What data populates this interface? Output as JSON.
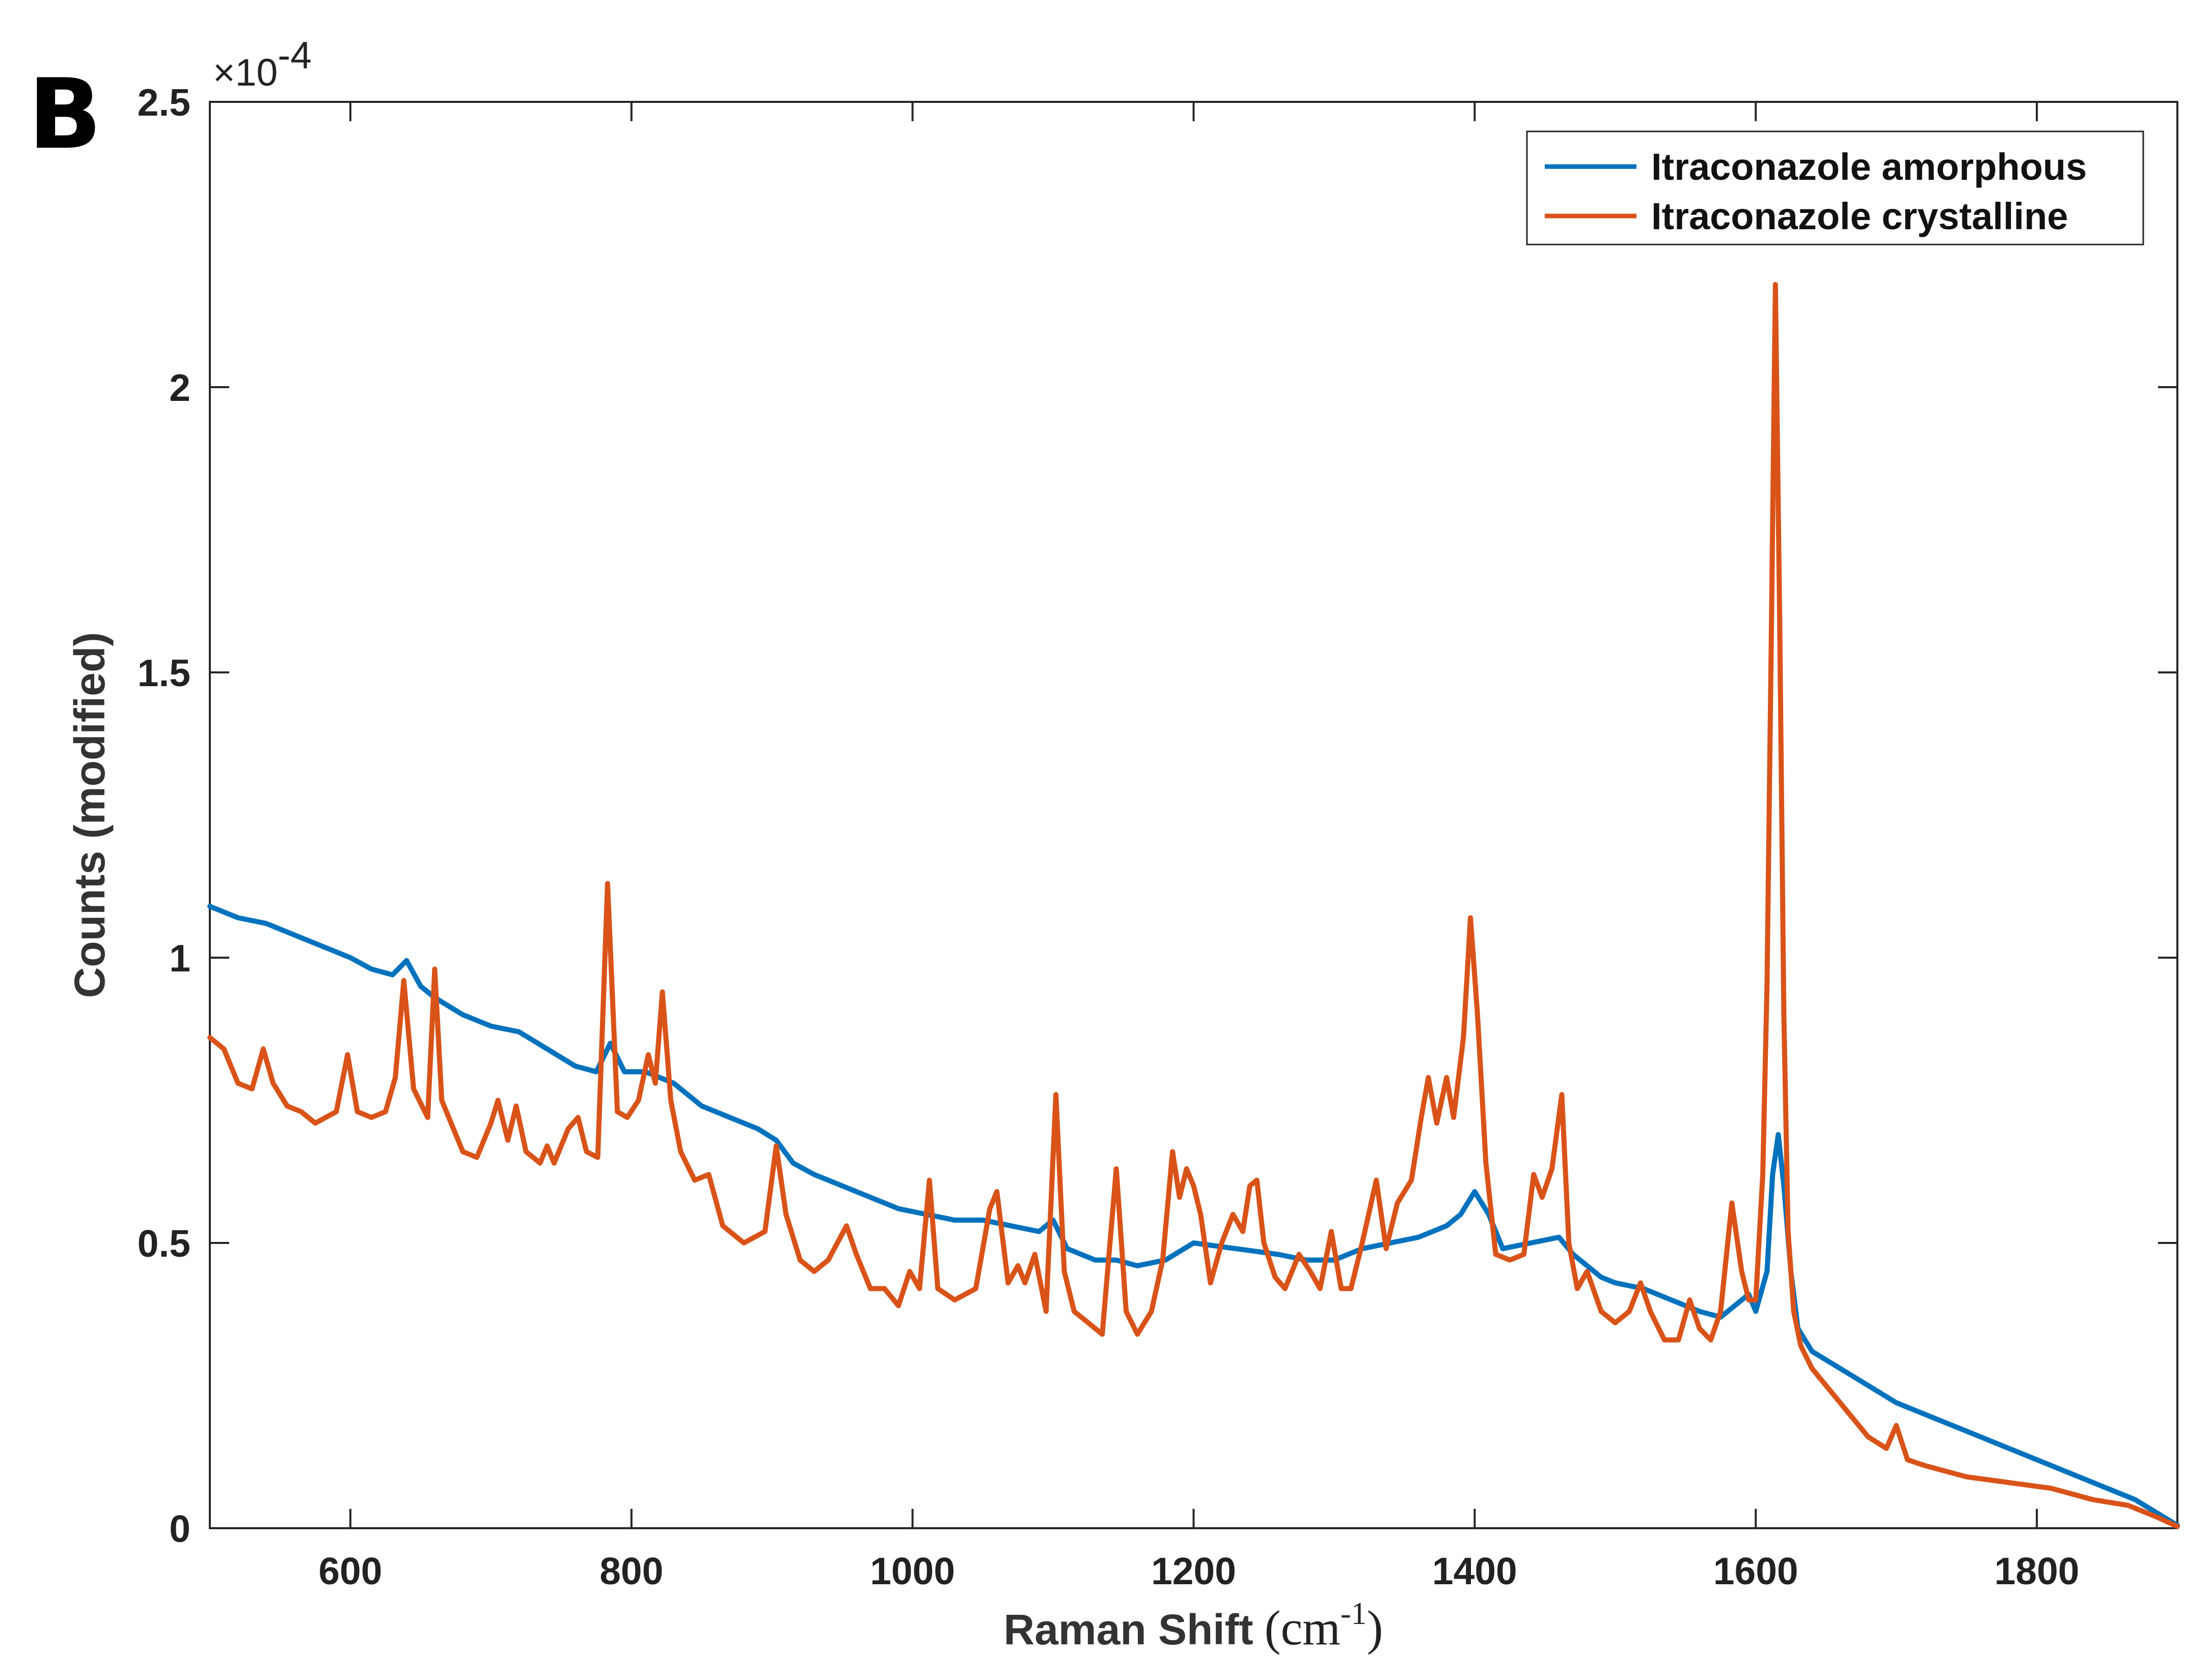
{
  "panel_label": "B",
  "chart_data": {
    "type": "line",
    "title": "",
    "xlabel": "Raman Shift",
    "xlabel_unit_base": "(cm",
    "xlabel_unit_sup": "-1",
    "xlabel_unit_close": ")",
    "ylabel": "Counts (modified)",
    "y_multiplier_base": "×10",
    "y_multiplier_exp": "-4",
    "xlim": [
      500,
      1900
    ],
    "ylim": [
      0,
      2.5
    ],
    "x_ticks": [
      600,
      800,
      1000,
      1200,
      1400,
      1600,
      1800
    ],
    "x_tick_labels": [
      "600",
      "800",
      "1000",
      "1200",
      "1400",
      "1600",
      "1800"
    ],
    "y_ticks": [
      0,
      0.5,
      1,
      1.5,
      2,
      2.5
    ],
    "y_tick_labels": [
      "0",
      "0.5",
      "1",
      "1.5",
      "2",
      "2.5"
    ],
    "grid": false,
    "legend_position": "top-right",
    "series": [
      {
        "name": "Itraconazole amorphous",
        "color": "#0072BD",
        "x": [
          500,
          520,
          540,
          560,
          580,
          600,
          615,
          630,
          640,
          650,
          660,
          680,
          700,
          720,
          740,
          760,
          775,
          785,
          795,
          810,
          830,
          850,
          870,
          890,
          903,
          915,
          930,
          950,
          970,
          990,
          1010,
          1030,
          1050,
          1070,
          1090,
          1100,
          1110,
          1130,
          1145,
          1160,
          1180,
          1200,
          1230,
          1260,
          1280,
          1300,
          1320,
          1340,
          1360,
          1380,
          1390,
          1400,
          1410,
          1420,
          1440,
          1460,
          1470,
          1480,
          1490,
          1500,
          1520,
          1540,
          1560,
          1575,
          1585,
          1595,
          1600,
          1608,
          1612,
          1616,
          1620,
          1625,
          1630,
          1640,
          1660,
          1680,
          1700,
          1730,
          1760,
          1790,
          1820,
          1850,
          1870,
          1890,
          1900
        ],
        "y": [
          1.09,
          1.07,
          1.06,
          1.04,
          1.02,
          1.0,
          0.98,
          0.97,
          0.995,
          0.95,
          0.93,
          0.9,
          0.88,
          0.87,
          0.84,
          0.81,
          0.8,
          0.85,
          0.8,
          0.8,
          0.78,
          0.74,
          0.72,
          0.7,
          0.68,
          0.64,
          0.62,
          0.6,
          0.58,
          0.56,
          0.55,
          0.54,
          0.54,
          0.53,
          0.52,
          0.54,
          0.49,
          0.47,
          0.47,
          0.46,
          0.47,
          0.5,
          0.49,
          0.48,
          0.47,
          0.47,
          0.49,
          0.5,
          0.51,
          0.53,
          0.55,
          0.59,
          0.55,
          0.49,
          0.5,
          0.51,
          0.48,
          0.46,
          0.44,
          0.43,
          0.42,
          0.4,
          0.38,
          0.37,
          0.39,
          0.41,
          0.38,
          0.45,
          0.62,
          0.69,
          0.6,
          0.45,
          0.35,
          0.31,
          0.28,
          0.25,
          0.22,
          0.19,
          0.16,
          0.13,
          0.1,
          0.07,
          0.05,
          0.02,
          0.005
        ]
      },
      {
        "name": "Itraconazole crystalline",
        "color": "#D95319",
        "x": [
          500,
          510,
          520,
          530,
          538,
          545,
          555,
          565,
          575,
          590,
          598,
          605,
          615,
          625,
          632,
          638,
          645,
          655,
          660,
          665,
          670,
          680,
          690,
          700,
          705,
          712,
          718,
          725,
          735,
          740,
          745,
          755,
          762,
          768,
          776,
          783,
          790,
          797,
          805,
          812,
          817,
          822,
          828,
          835,
          845,
          855,
          865,
          880,
          895,
          903,
          910,
          920,
          930,
          940,
          953,
          960,
          970,
          980,
          990,
          998,
          1005,
          1012,
          1018,
          1030,
          1045,
          1055,
          1060,
          1068,
          1075,
          1080,
          1087,
          1095,
          1102,
          1108,
          1115,
          1125,
          1135,
          1145,
          1152,
          1160,
          1170,
          1178,
          1185,
          1190,
          1195,
          1200,
          1205,
          1212,
          1220,
          1228,
          1235,
          1240,
          1245,
          1250,
          1258,
          1265,
          1275,
          1283,
          1290,
          1298,
          1305,
          1312,
          1320,
          1330,
          1337,
          1345,
          1355,
          1362,
          1367,
          1373,
          1380,
          1385,
          1392,
          1397,
          1402,
          1408,
          1415,
          1425,
          1435,
          1442,
          1448,
          1455,
          1462,
          1467,
          1473,
          1480,
          1490,
          1500,
          1510,
          1518,
          1525,
          1535,
          1545,
          1553,
          1560,
          1568,
          1575,
          1583,
          1590,
          1595,
          1600,
          1605,
          1608,
          1611,
          1614,
          1617,
          1620,
          1623,
          1627,
          1632,
          1640,
          1660,
          1680,
          1693,
          1700,
          1708,
          1720,
          1750,
          1780,
          1810,
          1840,
          1865,
          1885,
          1900
        ],
        "y": [
          0.86,
          0.84,
          0.78,
          0.77,
          0.84,
          0.78,
          0.74,
          0.73,
          0.71,
          0.73,
          0.83,
          0.73,
          0.72,
          0.73,
          0.79,
          0.96,
          0.77,
          0.72,
          0.98,
          0.75,
          0.72,
          0.66,
          0.65,
          0.71,
          0.75,
          0.68,
          0.74,
          0.66,
          0.64,
          0.67,
          0.64,
          0.7,
          0.72,
          0.66,
          0.65,
          1.13,
          0.73,
          0.72,
          0.75,
          0.83,
          0.78,
          0.94,
          0.75,
          0.66,
          0.61,
          0.62,
          0.53,
          0.5,
          0.52,
          0.67,
          0.55,
          0.47,
          0.45,
          0.47,
          0.53,
          0.48,
          0.42,
          0.42,
          0.39,
          0.45,
          0.42,
          0.61,
          0.42,
          0.4,
          0.42,
          0.56,
          0.59,
          0.43,
          0.46,
          0.43,
          0.48,
          0.38,
          0.76,
          0.45,
          0.38,
          0.36,
          0.34,
          0.63,
          0.38,
          0.34,
          0.38,
          0.47,
          0.66,
          0.58,
          0.63,
          0.6,
          0.55,
          0.43,
          0.5,
          0.55,
          0.52,
          0.6,
          0.61,
          0.5,
          0.44,
          0.42,
          0.48,
          0.45,
          0.42,
          0.52,
          0.42,
          0.42,
          0.5,
          0.61,
          0.49,
          0.57,
          0.61,
          0.72,
          0.79,
          0.71,
          0.79,
          0.72,
          0.86,
          1.07,
          0.9,
          0.64,
          0.48,
          0.47,
          0.48,
          0.62,
          0.58,
          0.63,
          0.76,
          0.5,
          0.42,
          0.45,
          0.38,
          0.36,
          0.38,
          0.43,
          0.38,
          0.33,
          0.33,
          0.4,
          0.35,
          0.33,
          0.38,
          0.57,
          0.45,
          0.4,
          0.4,
          0.62,
          0.95,
          1.55,
          2.18,
          1.6,
          0.9,
          0.52,
          0.38,
          0.32,
          0.28,
          0.22,
          0.16,
          0.14,
          0.18,
          0.12,
          0.11,
          0.09,
          0.08,
          0.07,
          0.05,
          0.04,
          0.02,
          0.003
        ]
      }
    ]
  }
}
